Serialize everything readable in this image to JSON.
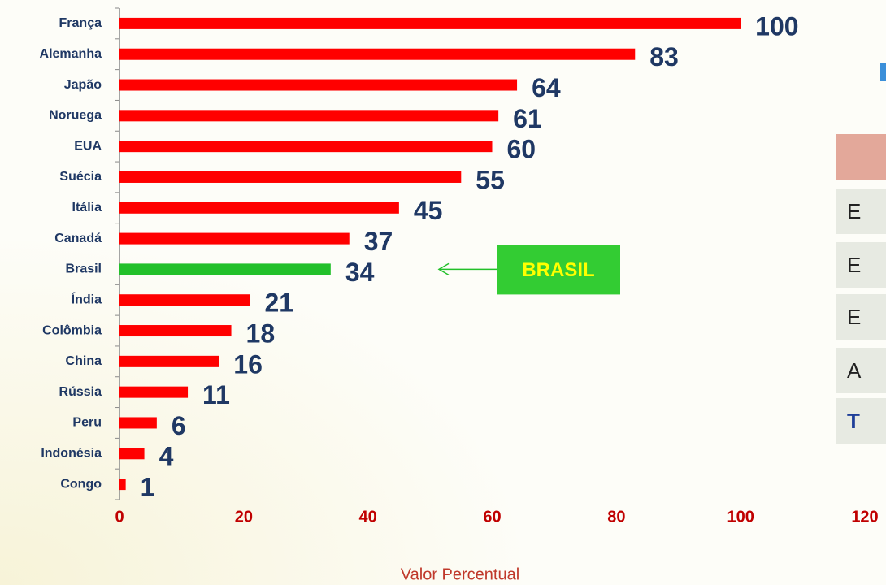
{
  "chart_data": {
    "type": "bar",
    "orientation": "horizontal",
    "categories": [
      "França",
      "Alemanha",
      "Japão",
      "Noruega",
      "EUA",
      "Suécia",
      "Itália",
      "Canadá",
      "Brasil",
      "Índia",
      "Colômbia",
      "China",
      "Rússia",
      "Peru",
      "Indonésia",
      "Congo"
    ],
    "values": [
      100,
      83,
      64,
      61,
      60,
      55,
      45,
      37,
      34,
      21,
      18,
      16,
      11,
      6,
      4,
      1
    ],
    "colors": [
      "#ff0000",
      "#ff0000",
      "#ff0000",
      "#ff0000",
      "#ff0000",
      "#ff0000",
      "#ff0000",
      "#ff0000",
      "#22c02a",
      "#ff0000",
      "#ff0000",
      "#ff0000",
      "#ff0000",
      "#ff0000",
      "#ff0000",
      "#ff0000"
    ],
    "xlabel": "Valor Percentual",
    "xlim": [
      0,
      120
    ],
    "xticks": [
      0,
      20,
      40,
      60,
      80,
      100,
      120
    ],
    "annotation": {
      "text": "BRASIL",
      "category": 8
    }
  },
  "table": {
    "rows": [
      "E",
      "E",
      "E",
      "A",
      "T"
    ]
  }
}
